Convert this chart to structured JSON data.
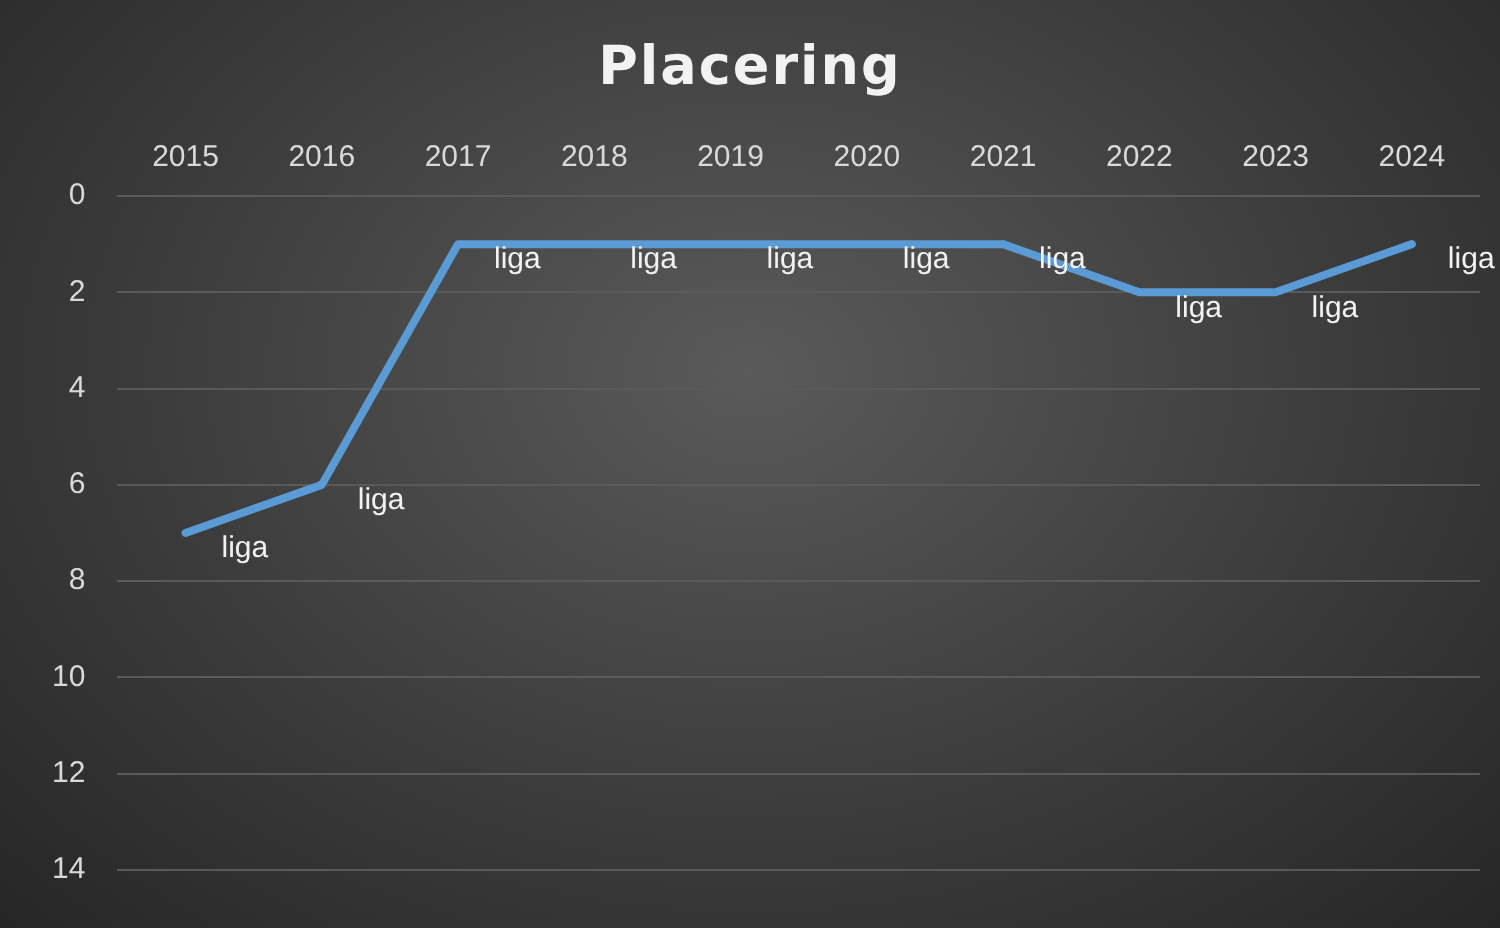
{
  "chart_data": {
    "type": "line",
    "title": "Placering",
    "categories": [
      "2015",
      "2016",
      "2017",
      "2018",
      "2019",
      "2020",
      "2021",
      "2022",
      "2023",
      "2024"
    ],
    "series": [
      {
        "color": "#5b9bd5",
        "values": [
          7,
          6,
          1,
          1,
          1,
          1,
          1,
          2,
          2,
          1
        ],
        "value_labels": [
          "liga",
          "liga",
          "liga",
          "liga",
          "liga",
          "liga",
          "liga",
          "liga",
          "liga",
          "liga"
        ]
      }
    ],
    "ylim": [
      14,
      0
    ],
    "yticks": [
      0,
      2,
      4,
      6,
      8,
      10,
      12,
      14
    ],
    "grid": "y",
    "legend": false,
    "marker": "none",
    "line_style": "solid"
  }
}
